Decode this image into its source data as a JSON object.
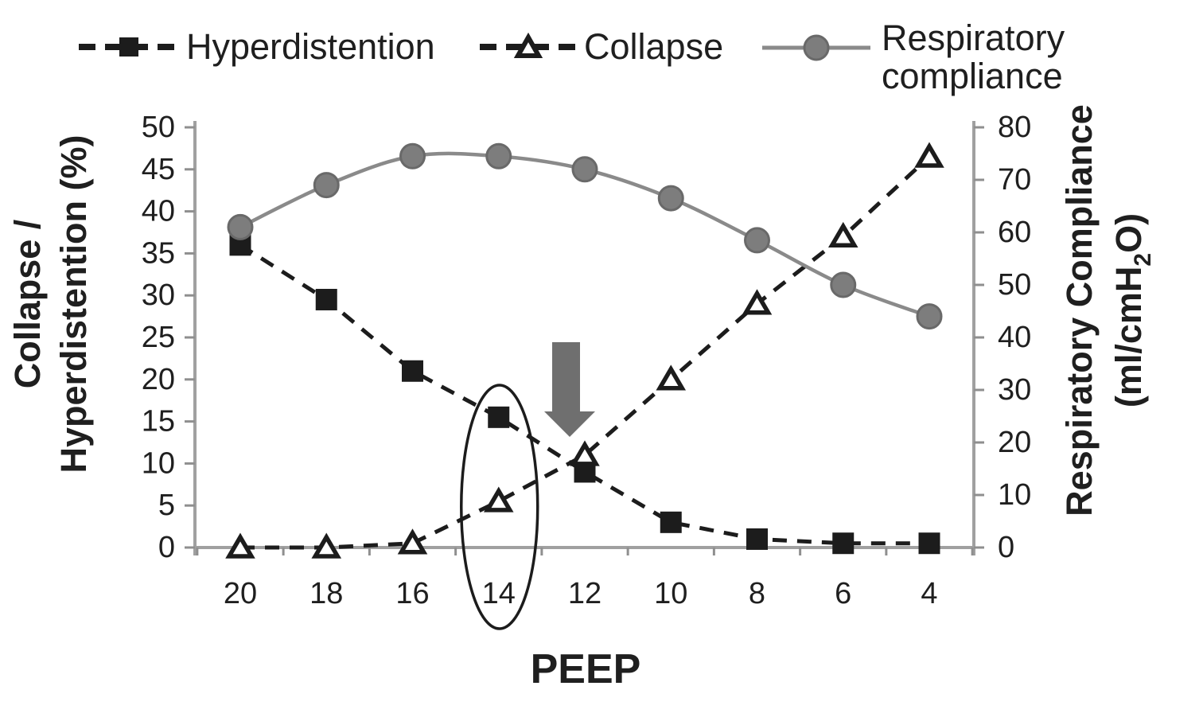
{
  "figure_type": "dual-axis scientific line chart",
  "colors": {
    "axis": "#a0a0a0",
    "tick": "#8f8f8f",
    "text": "#1f1f1f",
    "series_black": "#1c1c1c",
    "compliance_marker": "#7d7d7d",
    "compliance_line": "#8a8a8a",
    "arrow": "#6f6f6f",
    "background": "#ffffff"
  },
  "chart_data": {
    "type": "line",
    "title": "",
    "legend_position": "top",
    "grid": false,
    "x_axis": {
      "label": "PEEP",
      "categories": [
        "20",
        "18",
        "16",
        "14",
        "12",
        "10",
        "8",
        "6",
        "4"
      ]
    },
    "left_axis": {
      "title_lines": [
        "Collapse /",
        "Hyperdistention (%)"
      ],
      "ticks": [
        50,
        45,
        40,
        35,
        30,
        25,
        20,
        15,
        10,
        5,
        0
      ],
      "range": [
        0,
        50
      ]
    },
    "right_axis": {
      "title_lines": [
        "Respiratory Compliance",
        "(ml/cmH2O)"
      ],
      "units_parts": [
        "(ml/cmH",
        "2",
        "O)"
      ],
      "ticks": [
        80,
        70,
        60,
        50,
        40,
        30,
        20,
        10,
        0
      ],
      "range": [
        0,
        80
      ]
    },
    "series": [
      {
        "name": "Hyperdistention",
        "axis": "left",
        "marker": "square",
        "line_style": "dashed",
        "color": "#1c1c1c",
        "values": [
          36,
          29.5,
          21,
          15.5,
          9,
          3,
          1,
          0.5,
          0.5
        ]
      },
      {
        "name": "Collapse",
        "axis": "left",
        "marker": "triangle-open",
        "line_style": "dashed",
        "color": "#1c1c1c",
        "values": [
          0,
          0,
          0.5,
          5.5,
          11,
          20,
          29,
          37,
          46.5
        ]
      },
      {
        "name": "Respiratory compliance",
        "axis": "right",
        "marker": "circle",
        "line_style": "solid",
        "color": "#7d7d7d",
        "line_color": "#8a8a8a",
        "values": [
          61,
          69,
          74.5,
          74.5,
          72,
          66.5,
          58.5,
          50,
          44
        ]
      }
    ],
    "annotations": [
      {
        "type": "ellipse",
        "highlights": "PEEP 14 data points and axis label",
        "color": "#1c1c1c"
      },
      {
        "type": "arrow-down",
        "points_at": "between PEEP 14 and PEEP 12",
        "color": "#6f6f6f"
      }
    ]
  }
}
